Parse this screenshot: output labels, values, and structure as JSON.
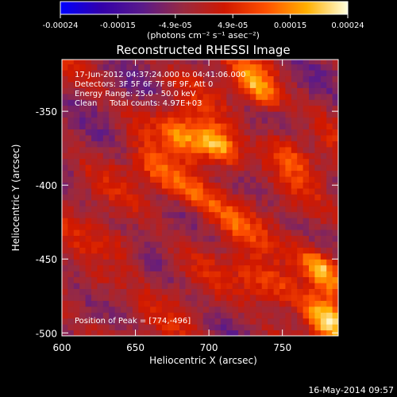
{
  "chart_data": {
    "type": "heatmap",
    "title": "Reconstructed RHESSI Image",
    "xlabel": "Heliocentric X (arcsec)",
    "ylabel": "Heliocentric Y (arcsec)",
    "xlim": [
      600,
      788
    ],
    "ylim": [
      -502,
      -315
    ],
    "x_ticks": [
      "600",
      "650",
      "700",
      "750"
    ],
    "y_ticks": [
      "-350",
      "-400",
      "-450",
      "-500"
    ],
    "colorbar": {
      "range": [
        -0.00024,
        0.00024
      ],
      "tick_labels": [
        "-0.00024",
        "-0.00015",
        "-4.9e-05",
        "4.9e-05",
        "0.00015",
        "0.00024"
      ],
      "unit_label": "(photons cm⁻² s⁻¹ asec⁻²)",
      "colormap": [
        "#0000ff",
        "#3300aa",
        "#5a1a8a",
        "#9a2a40",
        "#d01800",
        "#ff5000",
        "#ffb000",
        "#ffffe0"
      ]
    },
    "annotations": [
      "17-Jun-2012 04:37:24.000 to 04:41:06.000",
      "Detectors: 3F 5F 6F 7F 8F 9F, Att 0",
      "Energy Range: 25.0 - 50.0 keV",
      "Clean     Total counts: 4.97E+03"
    ],
    "peak_label": "Position of Peak = [774,-496]",
    "peak": {
      "x": 774,
      "y": -496
    },
    "bright_sources": [
      {
        "x": 680,
        "y": -368,
        "intensity": 0.00016
      },
      {
        "x": 704,
        "y": -375,
        "intensity": 0.00024
      },
      {
        "x": 730,
        "y": -335,
        "intensity": 0.0002
      },
      {
        "x": 665,
        "y": -395,
        "intensity": 0.00014
      },
      {
        "x": 690,
        "y": -410,
        "intensity": 0.00014
      },
      {
        "x": 752,
        "y": -380,
        "intensity": 0.00012
      },
      {
        "x": 775,
        "y": -458,
        "intensity": 0.00024
      },
      {
        "x": 777,
        "y": -494,
        "intensity": 0.00024
      },
      {
        "x": 748,
        "y": -472,
        "intensity": 0.00012
      },
      {
        "x": 730,
        "y": -465,
        "intensity": 0.0001
      },
      {
        "x": 640,
        "y": -445,
        "intensity": 8e-05
      },
      {
        "x": 622,
        "y": -470,
        "intensity": 6e-05
      },
      {
        "x": 715,
        "y": -428,
        "intensity": 9e-05
      }
    ]
  },
  "footer_date": "16-May-2014 09:57"
}
